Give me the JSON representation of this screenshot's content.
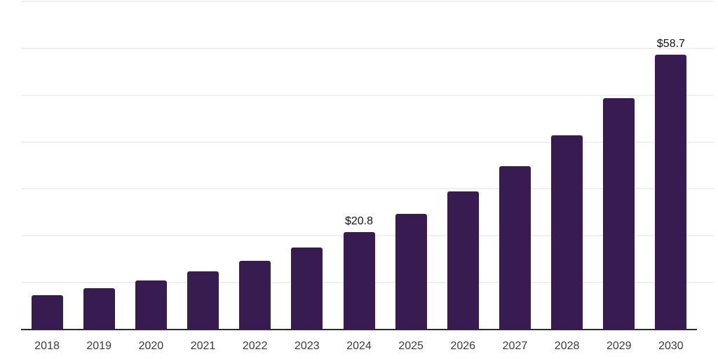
{
  "chart_data": {
    "type": "bar",
    "title": "",
    "xlabel": "",
    "ylabel": "",
    "categories": [
      "2018",
      "2019",
      "2020",
      "2021",
      "2022",
      "2023",
      "2024",
      "2025",
      "2026",
      "2027",
      "2028",
      "2029",
      "2030"
    ],
    "values": [
      7.4,
      8.8,
      10.4,
      12.4,
      14.7,
      17.5,
      20.8,
      24.7,
      29.4,
      34.9,
      41.5,
      49.3,
      58.7
    ],
    "data_labels": {
      "2024": "$20.8",
      "2030": "$58.7"
    },
    "ylim": [
      0,
      70
    ],
    "gridline_step": 10,
    "grid": "horizontal-only",
    "legend": "none",
    "y_axis_labels_visible": false,
    "colors": {
      "bar": "#381b50",
      "axis_line": "#2b2b2b",
      "gridline": "#f0f0f3",
      "tick_label": "#3a3a3a",
      "value_label": "#111111",
      "background": "#ffffff"
    }
  }
}
